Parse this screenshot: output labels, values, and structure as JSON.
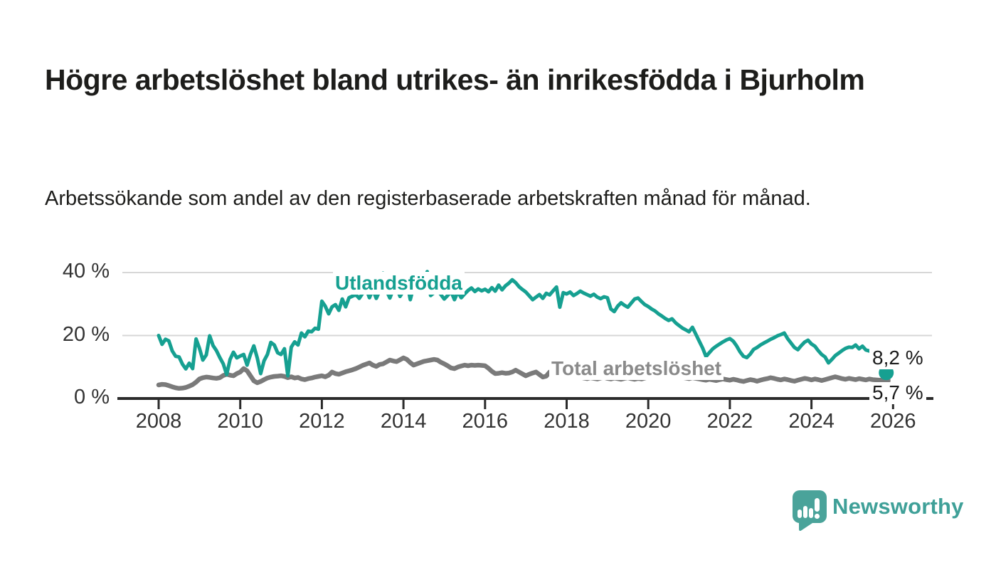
{
  "header": {
    "title": "Högre arbetslöshet bland utrikes- än inrikesfödda i Bjurholm",
    "subtitle": "Arbetssökande som andel av den registerbaserade arbetskraften månad för månad."
  },
  "colors": {
    "teal_line": "#16a091",
    "gray_line": "#7a7a7a",
    "gray_label": "#8a8a8a",
    "axis": "#2b2b2b",
    "grid": "#d7d7d7",
    "tick_text": "#333333",
    "text_dark": "#1d1d1b",
    "logo_teal": "#4aa39a",
    "logo_text_teal": "#3fa098"
  },
  "chart_data": {
    "type": "line",
    "x_interval": "month",
    "x_start": "2008-01",
    "x_end": "2025-11",
    "x_ticks": [
      "2008",
      "2010",
      "2012",
      "2014",
      "2016",
      "2018",
      "2020",
      "2022",
      "2024",
      "2026"
    ],
    "y_ticks": [
      {
        "label": "0 %",
        "value": 0
      },
      {
        "label": "20 %",
        "value": 20
      },
      {
        "label": "40 %",
        "value": 40
      }
    ],
    "ylim": [
      0,
      42
    ],
    "grid": "horizontal",
    "legend_position": "inline-labels",
    "series": [
      {
        "name": "Utlandsfödda",
        "color": "#16a091",
        "end_label": "8,2 %",
        "last_value": 8.2,
        "values": [
          20.0,
          17.2,
          18.8,
          18.3,
          15.1,
          13.4,
          13.2,
          10.9,
          9.4,
          11.2,
          9.5,
          18.9,
          16.0,
          12.2,
          13.8,
          19.9,
          16.8,
          15.2,
          13.0,
          11.0,
          7.6,
          12.4,
          14.7,
          12.9,
          13.5,
          14.0,
          10.6,
          14.0,
          16.7,
          12.9,
          7.9,
          12.0,
          14.0,
          17.8,
          17.0,
          14.5,
          14.0,
          15.8,
          7.2,
          16.3,
          18.0,
          17.0,
          20.8,
          19.6,
          21.4,
          21.2,
          22.3,
          22.0,
          30.9,
          29.3,
          26.9,
          29.1,
          29.8,
          28.0,
          31.6,
          29.1,
          32.0,
          32.5,
          33.0,
          31.8,
          33.4,
          35.0,
          32.0,
          34.6,
          31.8,
          34.2,
          39.8,
          34.3,
          31.9,
          34.7,
          35.2,
          32.4,
          34.2,
          37.2,
          31.4,
          35.6,
          38.1,
          34.3,
          35.4,
          40.3,
          32.7,
          33.6,
          34.4,
          33.0,
          31.6,
          32.7,
          34.0,
          31.4,
          33.9,
          32.0,
          33.2,
          34.3,
          35.1,
          34.0,
          34.8,
          34.2,
          34.7,
          33.9,
          35.2,
          34.1,
          36.0,
          34.5,
          35.8,
          36.6,
          37.7,
          36.8,
          35.5,
          34.6,
          33.8,
          32.6,
          31.4,
          32.2,
          33.0,
          31.8,
          33.4,
          32.9,
          34.2,
          35.4,
          29.0,
          33.6,
          33.2,
          33.8,
          32.7,
          33.3,
          34.1,
          33.5,
          33.0,
          32.5,
          33.1,
          32.2,
          31.7,
          32.3,
          32.0,
          28.4,
          27.6,
          29.3,
          30.4,
          29.6,
          29.0,
          30.3,
          31.6,
          31.9,
          30.8,
          29.8,
          29.2,
          28.4,
          27.8,
          26.9,
          26.2,
          25.4,
          24.8,
          25.3,
          24.1,
          23.2,
          22.4,
          21.8,
          21.2,
          22.6,
          20.4,
          18.2,
          16.0,
          13.3,
          14.6,
          15.8,
          16.6,
          17.3,
          18.0,
          18.6,
          19.0,
          18.2,
          16.7,
          14.8,
          13.4,
          13.0,
          14.1,
          15.6,
          16.2,
          17.0,
          17.6,
          18.2,
          18.8,
          19.3,
          19.9,
          20.3,
          20.8,
          19.0,
          17.6,
          16.2,
          15.5,
          16.8,
          17.9,
          18.5,
          17.3,
          16.6,
          15.2,
          14.0,
          13.2,
          11.3,
          12.4,
          13.6,
          14.4,
          15.2,
          15.9,
          16.3,
          16.2,
          17.0,
          15.8,
          16.6,
          15.4,
          15.1,
          15.6,
          14.9,
          13.0,
          10.5,
          8.2
        ]
      },
      {
        "name": "Total arbetslöshet",
        "color": "#7a7a7a",
        "end_label": "5,7 %",
        "last_value": 5.7,
        "values": [
          4.3,
          4.5,
          4.4,
          4.1,
          3.7,
          3.4,
          3.2,
          3.3,
          3.5,
          3.9,
          4.4,
          5.2,
          6.2,
          6.6,
          6.8,
          6.7,
          6.5,
          6.4,
          6.6,
          7.3,
          7.7,
          7.4,
          7.2,
          7.9,
          8.4,
          9.5,
          8.8,
          7.2,
          5.6,
          5.0,
          5.4,
          6.0,
          6.5,
          6.8,
          7.0,
          7.1,
          7.2,
          7.0,
          6.6,
          6.9,
          6.5,
          6.7,
          6.2,
          6.0,
          6.3,
          6.5,
          6.8,
          7.0,
          7.2,
          6.9,
          7.4,
          8.4,
          7.9,
          7.7,
          8.1,
          8.5,
          8.8,
          9.1,
          9.5,
          10.0,
          10.5,
          10.9,
          11.3,
          10.6,
          10.2,
          10.8,
          11.0,
          11.6,
          12.2,
          11.9,
          11.7,
          12.3,
          12.9,
          12.4,
          11.4,
          10.6,
          11.0,
          11.4,
          11.8,
          12.0,
          12.2,
          12.4,
          12.2,
          11.5,
          11.0,
          10.4,
          9.7,
          9.5,
          10.0,
          10.3,
          10.6,
          10.4,
          10.6,
          10.5,
          10.6,
          10.5,
          10.4,
          9.6,
          8.6,
          7.9,
          8.0,
          8.2,
          8.0,
          8.1,
          8.4,
          9.0,
          8.4,
          7.8,
          7.2,
          7.7,
          8.1,
          8.4,
          7.6,
          6.8,
          7.1,
          8.4,
          7.8,
          7.3,
          7.2,
          7.0,
          6.8,
          6.6,
          6.9,
          7.1,
          6.8,
          6.5,
          6.3,
          6.6,
          6.4,
          6.2,
          6.5,
          6.7,
          6.4,
          6.2,
          6.5,
          6.3,
          6.1,
          6.4,
          6.6,
          6.3,
          6.1,
          6.4,
          6.2,
          6.5,
          6.8,
          7.0,
          7.3,
          7.6,
          7.4,
          7.2,
          7.0,
          6.8,
          6.6,
          6.9,
          6.7,
          6.5,
          6.3,
          6.6,
          6.4,
          6.2,
          6.0,
          5.8,
          6.1,
          5.9,
          5.7,
          6.0,
          6.2,
          6.0,
          5.8,
          6.1,
          5.9,
          5.6,
          5.4,
          5.7,
          6.0,
          5.8,
          5.5,
          5.8,
          6.1,
          6.3,
          6.6,
          6.4,
          6.1,
          5.9,
          6.2,
          6.0,
          5.7,
          5.5,
          5.8,
          6.1,
          6.4,
          6.2,
          5.9,
          6.2,
          6.0,
          5.7,
          6.0,
          6.3,
          6.6,
          6.9,
          6.6,
          6.3,
          6.1,
          6.4,
          6.2,
          6.0,
          6.3,
          6.1,
          5.9,
          6.2,
          6.0,
          5.9,
          5.8,
          5.8,
          5.7
        ]
      }
    ]
  },
  "footer": {
    "brand": "Newsworthy"
  }
}
